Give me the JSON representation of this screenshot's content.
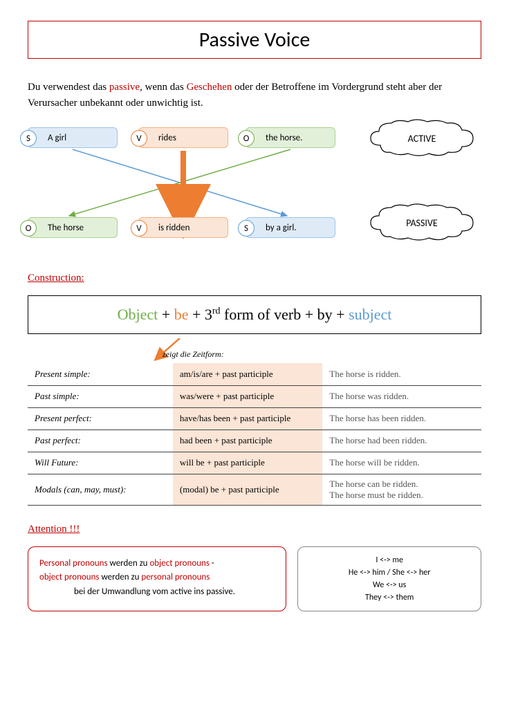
{
  "title": "Passive Voice",
  "intro": {
    "pre": "Du verwendest das ",
    "passive": "passive",
    "mid": ", wenn das ",
    "geschehen": "Geschehen",
    "post": " oder der Betroffene im Vordergrund steht aber der Verursacher unbekannt oder unwichtig ist."
  },
  "active_row": {
    "s_label": "S",
    "s_text": "A girl",
    "v_label": "V",
    "v_text": "rides",
    "o_label": "O",
    "o_text": "the horse.",
    "cloud": "ACTIVE"
  },
  "passive_row": {
    "o_label": "O",
    "o_text": "The horse",
    "v_label": "V",
    "v_text": "is ridden",
    "s_label": "S",
    "s_text": "by a girl.",
    "cloud": "PASSIVE"
  },
  "construction_heading": "Construction:",
  "formula": {
    "object": "Object",
    "plus1": " + ",
    "be": "be",
    "plus2": " + 3",
    "rd": "rd",
    "form": " form of verb",
    "plus_by": " + by + ",
    "subject": "subject"
  },
  "zeigt_label": "zeigt die Zeitform:",
  "tenses": [
    {
      "name": "Present simple:",
      "form": "am/is/are + past participle",
      "ex": "The horse is ridden."
    },
    {
      "name": "Past simple:",
      "form": "was/were + past participle",
      "ex": "The horse was ridden."
    },
    {
      "name": "Present perfect:",
      "form": "have/has been + past participle",
      "ex": "The horse has been ridden."
    },
    {
      "name": "Past perfect:",
      "form": "had been + past participle",
      "ex": "The horse had been ridden."
    },
    {
      "name": "Will Future:",
      "form": "will be + past participle",
      "ex": "The horse will be ridden."
    },
    {
      "name": "Modals (can, may, must):",
      "form": "(modal) be + past participle",
      "ex": "The horse can be ridden.\nThe horse must be ridden."
    }
  ],
  "attention_heading": "Attention !!!",
  "attention_box": {
    "pp": "Personal pronouns",
    "t1": " werden zu ",
    "op": "object pronouns",
    "dash": " - ",
    "op2": "object pronouns",
    "t2": " werden zu ",
    "pp2": "personal pronouns",
    "t3": "bei der Umwandlung vom active ins passive."
  },
  "pronouns_box": [
    "I <-> me",
    "He <-> him / She <-> her",
    "We <-> us",
    "They <-> them"
  ],
  "colors": {
    "red": "#c00000",
    "blue_fill": "#deebf7",
    "blue_border": "#5b9bd5",
    "orange_fill": "#fbe5d6",
    "orange_border": "#ed7d31",
    "green_fill": "#e2f0d9",
    "green_border": "#70ad47"
  }
}
